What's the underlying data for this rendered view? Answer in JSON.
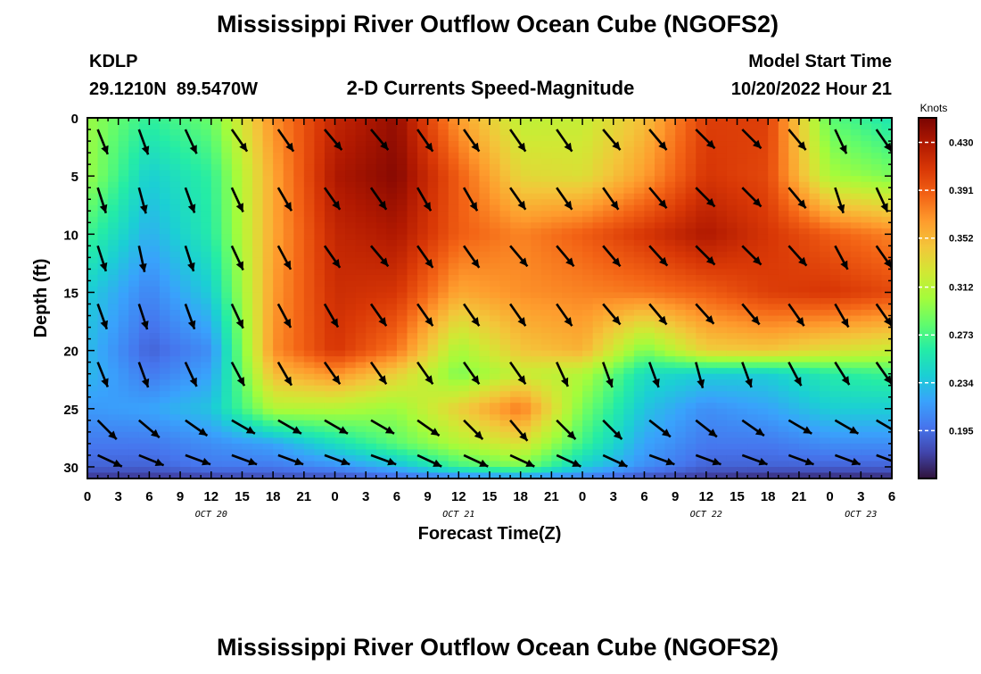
{
  "header": {
    "title": "Mississippi River Outflow Ocean Cube (NGOFS2)",
    "station_id": "KDLP",
    "station_coords": "29.1210N  89.5470W",
    "subtitle": "2-D Currents Speed-Magnitude",
    "model_start_label": "Model Start Time",
    "model_start_value": "10/20/2022 Hour 21"
  },
  "footer": {
    "title": "Mississippi River Outflow Ocean Cube (NGOFS2)"
  },
  "colors": {
    "frame": "#000000",
    "background": "#ffffff",
    "arrow": "#000000",
    "colormap": [
      "#30123b",
      "#4145ab",
      "#4675ed",
      "#39a2fc",
      "#1bcfd4",
      "#24eca6",
      "#61fc6c",
      "#a4fc3b",
      "#d1e834",
      "#f3c63a",
      "#fe9b2d",
      "#f36315",
      "#d93806",
      "#b11901",
      "#7a0402"
    ]
  },
  "chart_data": {
    "type": "heatmap",
    "xlabel": "Forecast Time(Z)",
    "ylabel": "Depth (ft)",
    "x_ticks": [
      "0",
      "3",
      "6",
      "9",
      "12",
      "15",
      "18",
      "21",
      "0",
      "3",
      "6",
      "9",
      "12",
      "15",
      "18",
      "21",
      "0",
      "3",
      "6",
      "9",
      "12",
      "15",
      "18",
      "21",
      "0",
      "3",
      "6"
    ],
    "x_range_hours": [
      0,
      78
    ],
    "date_labels": [
      {
        "label": "OCT 20",
        "hour": 12
      },
      {
        "label": "OCT 21",
        "hour": 36
      },
      {
        "label": "OCT 22",
        "hour": 60
      },
      {
        "label": "OCT 23",
        "hour": 75
      }
    ],
    "y_ticks": [
      "0",
      "5",
      "10",
      "15",
      "20",
      "25",
      "30"
    ],
    "ylim": [
      0,
      31
    ],
    "y_inverted": true,
    "colorbar": {
      "unit": "Knots",
      "min": 0.156,
      "max": 0.45,
      "tick_labels": [
        "0.195",
        "0.234",
        "0.273",
        "0.312",
        "0.352",
        "0.391",
        "0.430"
      ]
    },
    "arrow_rows_depth": [
      1,
      6,
      11,
      16,
      21,
      26,
      29
    ],
    "arrow_cols_hour": [
      1,
      5,
      9.5,
      14,
      18.5,
      23,
      27.5,
      32,
      36.5,
      41,
      45.5,
      50,
      54.5,
      59,
      63.5,
      68,
      72.5,
      76.5
    ],
    "arrow_angles_deg": [
      [
        -68,
        -70,
        -65,
        -55,
        -55,
        -50,
        -50,
        -55,
        -55,
        -55,
        -55,
        -50,
        -50,
        -45,
        -45,
        -50,
        -65,
        -55
      ],
      [
        -72,
        -75,
        -70,
        -65,
        -60,
        -55,
        -55,
        -60,
        -60,
        -55,
        -55,
        -55,
        -50,
        -45,
        -45,
        -50,
        -72,
        -65
      ],
      [
        -72,
        -78,
        -72,
        -65,
        -62,
        -55,
        -50,
        -55,
        -55,
        -50,
        -50,
        -50,
        -48,
        -45,
        -45,
        -48,
        -62,
        -55
      ],
      [
        -70,
        -72,
        -70,
        -65,
        -62,
        -60,
        -55,
        -55,
        -55,
        -55,
        -55,
        -50,
        -50,
        -48,
        -50,
        -55,
        -60,
        -55
      ],
      [
        -68,
        -70,
        -65,
        -62,
        -60,
        -55,
        -55,
        -55,
        -55,
        -55,
        -65,
        -70,
        -70,
        -75,
        -70,
        -62,
        -58,
        -55
      ],
      [
        -45,
        -40,
        -35,
        -30,
        -30,
        -30,
        -30,
        -35,
        -45,
        -50,
        -45,
        -45,
        -38,
        -38,
        -35,
        -30,
        -30,
        -30
      ],
      [
        -25,
        -22,
        -20,
        -20,
        -20,
        -20,
        -20,
        -25,
        -25,
        -25,
        -25,
        -25,
        -20,
        -20,
        -20,
        -20,
        -20,
        -20
      ]
    ],
    "hours": [
      0,
      6,
      12,
      18,
      24,
      30,
      36,
      42,
      48,
      54,
      60,
      66,
      72,
      78
    ],
    "depths_ft": [
      0,
      5,
      10,
      15,
      20,
      22,
      25,
      28,
      30,
      31
    ],
    "speed_knots": [
      [
        0.3,
        0.265,
        0.285,
        0.37,
        0.42,
        0.44,
        0.365,
        0.315,
        0.318,
        0.348,
        0.405,
        0.405,
        0.28,
        0.255
      ],
      [
        0.3,
        0.24,
        0.265,
        0.36,
        0.43,
        0.445,
        0.39,
        0.335,
        0.33,
        0.365,
        0.41,
        0.4,
        0.305,
        0.29
      ],
      [
        0.27,
        0.225,
        0.26,
        0.36,
        0.42,
        0.43,
        0.39,
        0.375,
        0.39,
        0.41,
        0.43,
        0.41,
        0.39,
        0.375
      ],
      [
        0.24,
        0.205,
        0.24,
        0.365,
        0.415,
        0.41,
        0.36,
        0.37,
        0.375,
        0.38,
        0.39,
        0.405,
        0.41,
        0.4
      ],
      [
        0.23,
        0.19,
        0.21,
        0.37,
        0.41,
        0.38,
        0.305,
        0.345,
        0.355,
        0.29,
        0.34,
        0.345,
        0.33,
        0.32
      ],
      [
        0.23,
        0.2,
        0.22,
        0.35,
        0.37,
        0.34,
        0.29,
        0.32,
        0.31,
        0.25,
        0.24,
        0.24,
        0.26,
        0.27
      ],
      [
        0.215,
        0.22,
        0.235,
        0.31,
        0.31,
        0.3,
        0.34,
        0.38,
        0.29,
        0.235,
        0.21,
        0.22,
        0.24,
        0.24
      ],
      [
        0.2,
        0.2,
        0.21,
        0.22,
        0.25,
        0.28,
        0.31,
        0.33,
        0.27,
        0.22,
        0.2,
        0.2,
        0.21,
        0.21
      ],
      [
        0.19,
        0.19,
        0.2,
        0.2,
        0.21,
        0.23,
        0.27,
        0.29,
        0.24,
        0.21,
        0.19,
        0.19,
        0.19,
        0.19
      ],
      [
        0.17,
        0.17,
        0.175,
        0.18,
        0.18,
        0.19,
        0.2,
        0.21,
        0.2,
        0.18,
        0.17,
        0.165,
        0.165,
        0.165
      ]
    ]
  }
}
